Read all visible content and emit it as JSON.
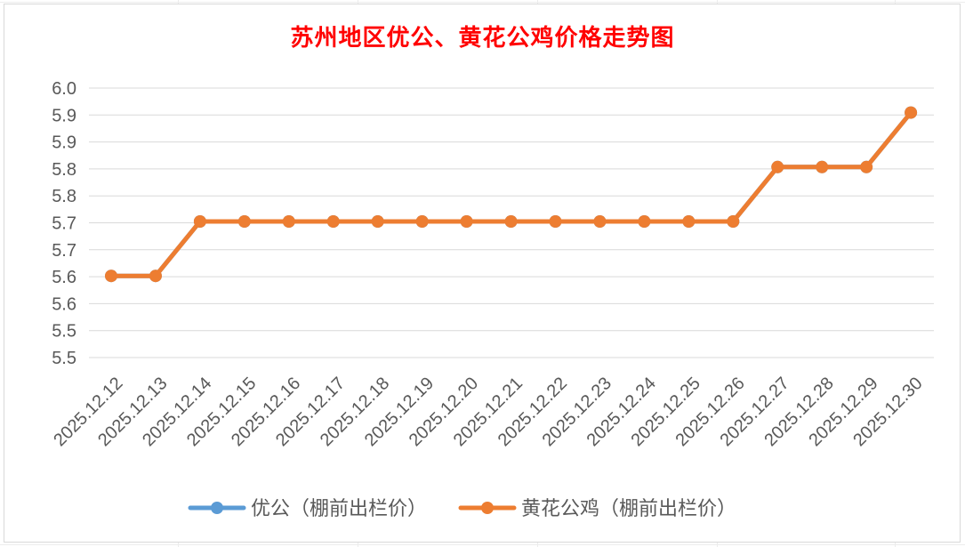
{
  "chart_data": {
    "type": "line",
    "title": "苏州地区优公、黄花公鸡价格走势图",
    "categories": [
      "2025.12.12",
      "2025.12.13",
      "2025.12.14",
      "2025.12.15",
      "2025.12.16",
      "2025.12.17",
      "2025.12.18",
      "2025.12.19",
      "2025.12.20",
      "2025.12.21",
      "2025.12.22",
      "2025.12.23",
      "2025.12.24",
      "2025.12.25",
      "2025.12.26",
      "2025.12.27",
      "2025.12.28",
      "2025.12.29",
      "2025.12.30"
    ],
    "y_tick_labels": [
      "6.0",
      "5.9",
      "5.9",
      "5.8",
      "5.8",
      "5.7",
      "5.7",
      "5.6",
      "5.6",
      "5.5",
      "5.5"
    ],
    "ylim": [
      5.45,
      5.95
    ],
    "grid": true,
    "legend_position": "bottom",
    "series": [
      {
        "name": "优公（棚前出栏价）",
        "color": "#5b9bd5",
        "values": [
          5.6,
          5.6,
          5.7,
          5.7,
          5.7,
          5.7,
          5.7,
          5.7,
          5.7,
          5.7,
          5.7,
          5.7,
          5.7,
          5.7,
          5.7,
          5.8,
          5.8,
          5.8,
          5.9
        ]
      },
      {
        "name": "黄花公鸡（棚前出栏价）",
        "color": "#ed7d31",
        "values": [
          5.6,
          5.6,
          5.7,
          5.7,
          5.7,
          5.7,
          5.7,
          5.7,
          5.7,
          5.7,
          5.7,
          5.7,
          5.7,
          5.7,
          5.7,
          5.8,
          5.8,
          5.8,
          5.9
        ]
      }
    ]
  }
}
